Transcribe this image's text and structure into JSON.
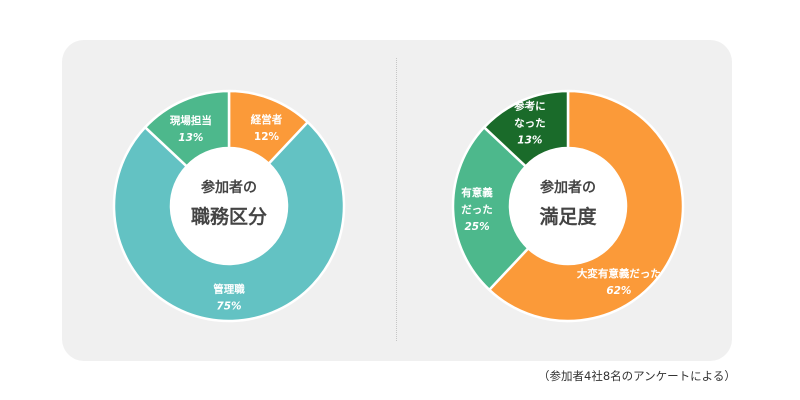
{
  "colors": {
    "panel_bg": "#f0f0f0",
    "orange": "#fb9a39",
    "green": "#4db88c",
    "teal": "#63c2c3",
    "dark_green": "#1a6b2a",
    "center_text": "#444444"
  },
  "chart_data": [
    {
      "type": "pie",
      "title": "参加者の",
      "subtitle": "職務区分",
      "slices": [
        {
          "label": "経営者",
          "value": 12,
          "display": "12%",
          "color": "#fb9a39",
          "italic": false
        },
        {
          "label": "管理職",
          "value": 75,
          "display": "75%",
          "color": "#63c2c3",
          "italic": true
        },
        {
          "label": "現場担当",
          "value": 13,
          "display": "13%",
          "color": "#4db88c",
          "italic": true
        }
      ]
    },
    {
      "type": "pie",
      "title": "参加者の",
      "subtitle": "満足度",
      "slices": [
        {
          "label": "大変有意義だった",
          "value": 62,
          "display": "62%",
          "color": "#fb9a39",
          "italic": true
        },
        {
          "label": "有意義\nだった",
          "value": 25,
          "display": "25%",
          "color": "#4db88c",
          "italic": true
        },
        {
          "label": "参考に\nなった",
          "value": 13,
          "display": "13%",
          "color": "#1a6b2a",
          "italic": true
        }
      ]
    }
  ],
  "footnote": "（参加者4社8名のアンケートによる）"
}
